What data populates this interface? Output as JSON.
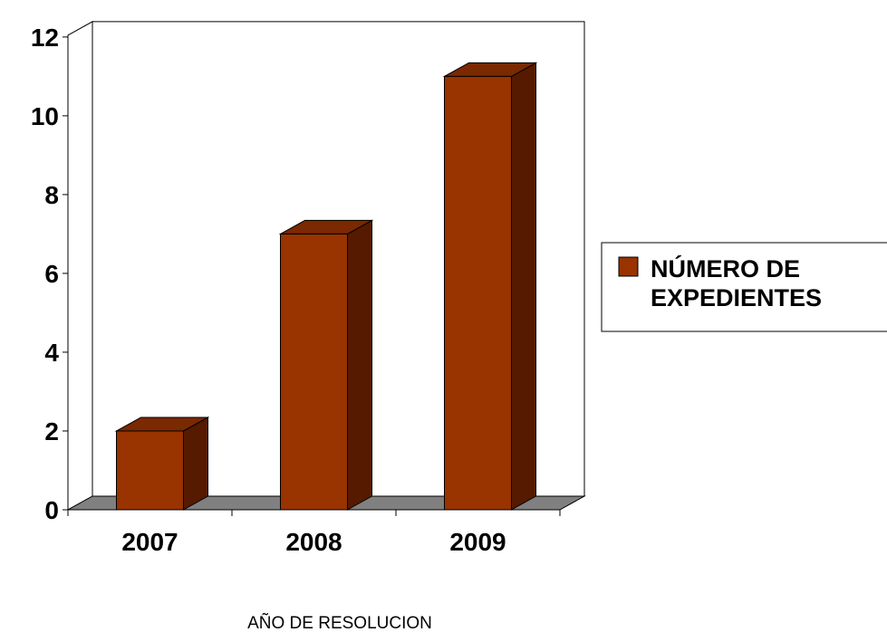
{
  "chart_data": {
    "type": "bar",
    "categories": [
      "2007",
      "2008",
      "2009"
    ],
    "series": [
      {
        "name": "NÚMERO DE EXPEDIENTES",
        "values": [
          2,
          7,
          11
        ]
      }
    ],
    "xlabel": "AÑO DE RESOLUCION",
    "ylabel": "",
    "ylim": [
      0,
      12
    ],
    "yticks": [
      0,
      2,
      4,
      6,
      8,
      10,
      12
    ],
    "grid": false,
    "legend": "right",
    "legend_lines": [
      "NÚMERO DE",
      "EXPEDIENTES"
    ],
    "colors": {
      "bar_front": "#993300",
      "bar_side": "#551a00",
      "bar_top": "#7a2900",
      "floor": "#808080",
      "outline": "#000000"
    }
  }
}
